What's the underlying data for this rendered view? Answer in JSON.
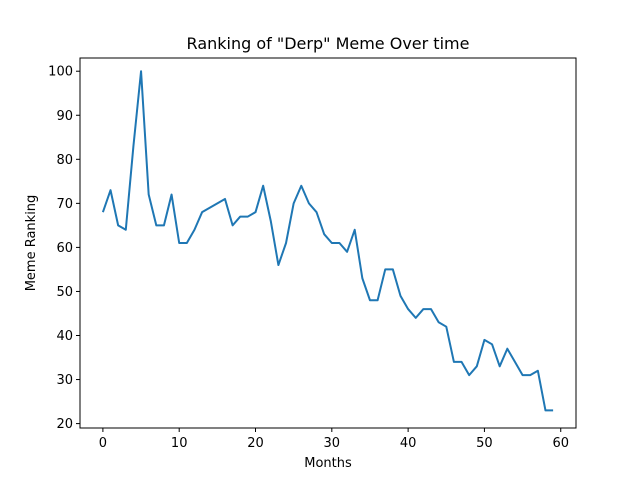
{
  "chart_data": {
    "type": "line",
    "title": "Ranking of \"Derp\" Meme Over time",
    "xlabel": "Months",
    "ylabel": "Meme Ranking",
    "xlim": [
      -3,
      62
    ],
    "ylim": [
      19,
      103
    ],
    "xticks": [
      0,
      10,
      20,
      30,
      40,
      50,
      60
    ],
    "yticks": [
      20,
      30,
      40,
      50,
      60,
      70,
      80,
      90,
      100
    ],
    "grid": false,
    "series": [
      {
        "color": "#1f77b4",
        "x": [
          0,
          1,
          2,
          3,
          4,
          5,
          6,
          7,
          8,
          9,
          10,
          11,
          12,
          13,
          14,
          15,
          16,
          17,
          18,
          19,
          20,
          21,
          22,
          23,
          24,
          25,
          26,
          27,
          28,
          29,
          30,
          31,
          32,
          33,
          34,
          35,
          36,
          37,
          38,
          39,
          40,
          41,
          42,
          43,
          44,
          45,
          46,
          47,
          48,
          49,
          50,
          51,
          52,
          53,
          54,
          55,
          56,
          57,
          58,
          59
        ],
        "values": [
          68,
          73,
          65,
          64,
          83,
          100,
          72,
          65,
          65,
          72,
          61,
          61,
          64,
          68,
          69,
          70,
          71,
          65,
          67,
          67,
          68,
          74,
          66,
          56,
          61,
          70,
          74,
          70,
          68,
          63,
          61,
          61,
          59,
          64,
          53,
          48,
          48,
          55,
          55,
          49,
          46,
          44,
          46,
          46,
          43,
          42,
          34,
          34,
          31,
          33,
          39,
          38,
          33,
          37,
          34,
          31,
          31,
          32,
          23,
          23
        ]
      }
    ]
  }
}
